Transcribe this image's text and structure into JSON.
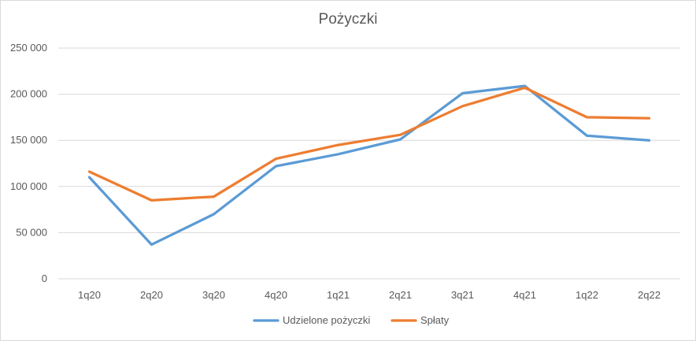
{
  "chart_data": {
    "type": "line",
    "title": "Pożyczki",
    "categories": [
      "1q20",
      "2q20",
      "3q20",
      "4q20",
      "1q21",
      "2q21",
      "3q21",
      "4q21",
      "1q22",
      "2q22"
    ],
    "series": [
      {
        "name": "Udzielone pożyczki",
        "color": "#5b9bd5",
        "values": [
          110000,
          37000,
          70000,
          122000,
          135000,
          151000,
          201000,
          209000,
          155000,
          150000
        ]
      },
      {
        "name": "Spłaty",
        "color": "#ed7d31",
        "values": [
          116000,
          85000,
          89000,
          130000,
          145000,
          156000,
          187000,
          207000,
          175000,
          174000
        ]
      }
    ],
    "ylim": [
      0,
      250000
    ],
    "yticks": [
      0,
      50000,
      100000,
      150000,
      200000,
      250000
    ],
    "ytick_labels": [
      "0",
      "50 000",
      "100 000",
      "150 000",
      "200 000",
      "250 000"
    ],
    "grid": true,
    "legend": "bottom"
  }
}
